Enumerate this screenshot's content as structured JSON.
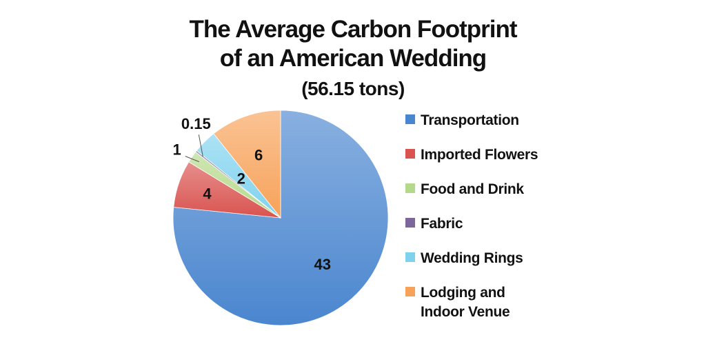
{
  "chart_data": {
    "type": "pie",
    "title": [
      "The Average Carbon Footprint",
      "of an American Wedding"
    ],
    "subtitle": "(56.15 tons)",
    "slices": [
      {
        "label": "Transportation",
        "value": 43,
        "display": "43",
        "color": "#4a86cf"
      },
      {
        "label": "Imported Flowers",
        "value": 4,
        "display": "4",
        "color": "#d9534f"
      },
      {
        "label": "Food and Drink",
        "value": 1,
        "display": "1",
        "color": "#b5d98a"
      },
      {
        "label": "Fabric",
        "value": 0.15,
        "display": "0.15",
        "color": "#7b679b"
      },
      {
        "label": "Wedding Rings",
        "value": 2,
        "display": "2",
        "color": "#7fd2ee"
      },
      {
        "label": "Lodging and Indoor Venue",
        "value": 6,
        "display": "6",
        "color": "#f7a25a"
      }
    ],
    "legend": {
      "position": "right",
      "entries": [
        [
          "Transportation"
        ],
        [
          "Imported Flowers"
        ],
        [
          "Food and Drink"
        ],
        [
          "Fabric"
        ],
        [
          "Wedding Rings"
        ],
        [
          "Lodging and",
          "Indoor Venue"
        ]
      ]
    }
  }
}
